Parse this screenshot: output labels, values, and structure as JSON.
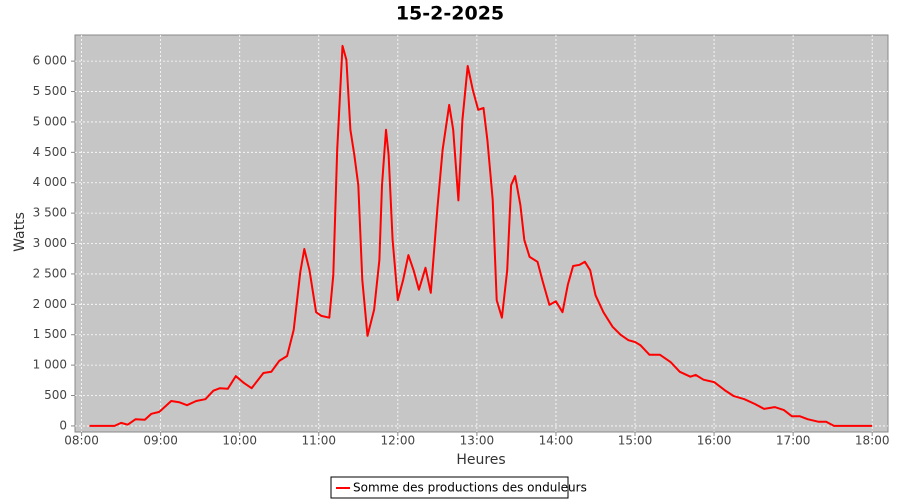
{
  "chart_data": {
    "type": "line",
    "title": "15-2-2025",
    "x_label": "Heures",
    "y_label": "Watts",
    "x": [
      "08:06",
      "08:25",
      "08:30",
      "08:35",
      "08:41",
      "08:48",
      "08:53",
      "08:59",
      "09:04",
      "09:08",
      "09:14",
      "09:20",
      "09:27",
      "09:34",
      "09:40",
      "09:45",
      "09:51",
      "09:57",
      "10:03",
      "10:09",
      "10:14",
      "10:18",
      "10:24",
      "10:30",
      "10:36",
      "10:41",
      "10:46",
      "10:49",
      "10:53",
      "10:58",
      "11:02",
      "11:08",
      "11:11",
      "11:14",
      "11:18",
      "11:21",
      "11:24",
      "11:27",
      "11:30",
      "11:33",
      "11:37",
      "11:42",
      "11:46",
      "11:48",
      "11:51",
      "11:53",
      "11:56",
      "12:00",
      "12:04",
      "12:08",
      "12:12",
      "12:16",
      "12:21",
      "12:25",
      "12:30",
      "12:34",
      "12:39",
      "12:42",
      "12:46",
      "12:49",
      "12:53",
      "12:57",
      "13:01",
      "13:05",
      "13:08",
      "13:12",
      "13:15",
      "13:19",
      "13:23",
      "13:26",
      "13:29",
      "13:33",
      "13:36",
      "13:40",
      "13:46",
      "13:50",
      "13:55",
      "14:00",
      "14:05",
      "14:09",
      "14:13",
      "14:18",
      "14:22",
      "14:26",
      "14:30",
      "14:36",
      "14:43",
      "14:49",
      "14:55",
      "15:00",
      "15:04",
      "15:11",
      "15:19",
      "15:27",
      "15:34",
      "15:42",
      "15:46",
      "15:52",
      "16:00",
      "16:08",
      "16:15",
      "16:23",
      "16:31",
      "16:38",
      "16:46",
      "16:53",
      "16:59",
      "17:05",
      "17:11",
      "17:19",
      "17:25",
      "17:31",
      "18:00"
    ],
    "series": [
      {
        "name": "Somme des productions des onduleurs",
        "color": "#ff0000",
        "values": [
          0,
          0,
          50,
          20,
          110,
          100,
          200,
          230,
          330,
          410,
          390,
          340,
          410,
          440,
          580,
          620,
          610,
          820,
          710,
          620,
          760,
          870,
          890,
          1070,
          1150,
          1580,
          2530,
          2910,
          2560,
          1870,
          1810,
          1780,
          2480,
          4540,
          6250,
          6020,
          4870,
          4460,
          3960,
          2400,
          1480,
          1910,
          2730,
          3960,
          4870,
          4460,
          3060,
          2070,
          2400,
          2810,
          2560,
          2240,
          2600,
          2190,
          3580,
          4540,
          5280,
          4870,
          3710,
          5030,
          5920,
          5520,
          5200,
          5230,
          4700,
          3720,
          2070,
          1780,
          2560,
          3960,
          4110,
          3630,
          3060,
          2780,
          2700,
          2370,
          1990,
          2050,
          1870,
          2320,
          2630,
          2650,
          2700,
          2560,
          2150,
          1870,
          1630,
          1500,
          1410,
          1380,
          1330,
          1170,
          1170,
          1050,
          890,
          810,
          840,
          760,
          720,
          590,
          490,
          440,
          360,
          280,
          310,
          260,
          160,
          160,
          110,
          70,
          70,
          0,
          0
        ]
      }
    ],
    "xlim": [
      "07:55",
      "18:12"
    ],
    "xticks": [
      "08:00",
      "09:00",
      "10:00",
      "11:00",
      "12:00",
      "13:00",
      "14:00",
      "15:00",
      "16:00",
      "17:00",
      "18:00"
    ],
    "ylim": [
      -100,
      6430
    ],
    "yticks": [
      0,
      500,
      {
        "value": 1000,
        "label": "1 000"
      },
      {
        "value": 1500,
        "label": "1 500"
      },
      {
        "value": 2000,
        "label": "2 000"
      },
      {
        "value": 2500,
        "label": "2 500"
      },
      {
        "value": 3000,
        "label": "3 000"
      },
      {
        "value": 3500,
        "label": "3 500"
      },
      {
        "value": 4000,
        "label": "4 000"
      },
      {
        "value": 4500,
        "label": "4 500"
      },
      {
        "value": 5000,
        "label": "5 000"
      },
      {
        "value": 5500,
        "label": "5 500"
      },
      {
        "value": 6000,
        "label": "6 000"
      }
    ],
    "grid": true,
    "legend": "bottom"
  }
}
